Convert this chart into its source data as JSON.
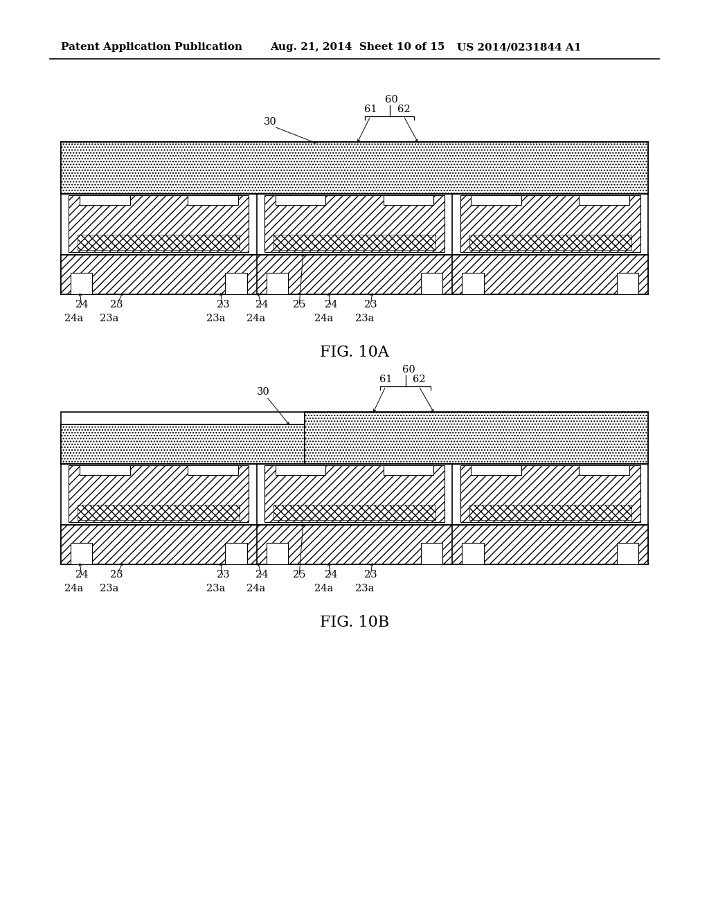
{
  "bg_color": "#ffffff",
  "header_left": "Patent Application Publication",
  "header_mid": "Aug. 21, 2014  Sheet 10 of 15",
  "header_right": "US 2014/0231844 A1",
  "fig_a_label": "FIG. 10A",
  "fig_b_label": "FIG. 10B"
}
